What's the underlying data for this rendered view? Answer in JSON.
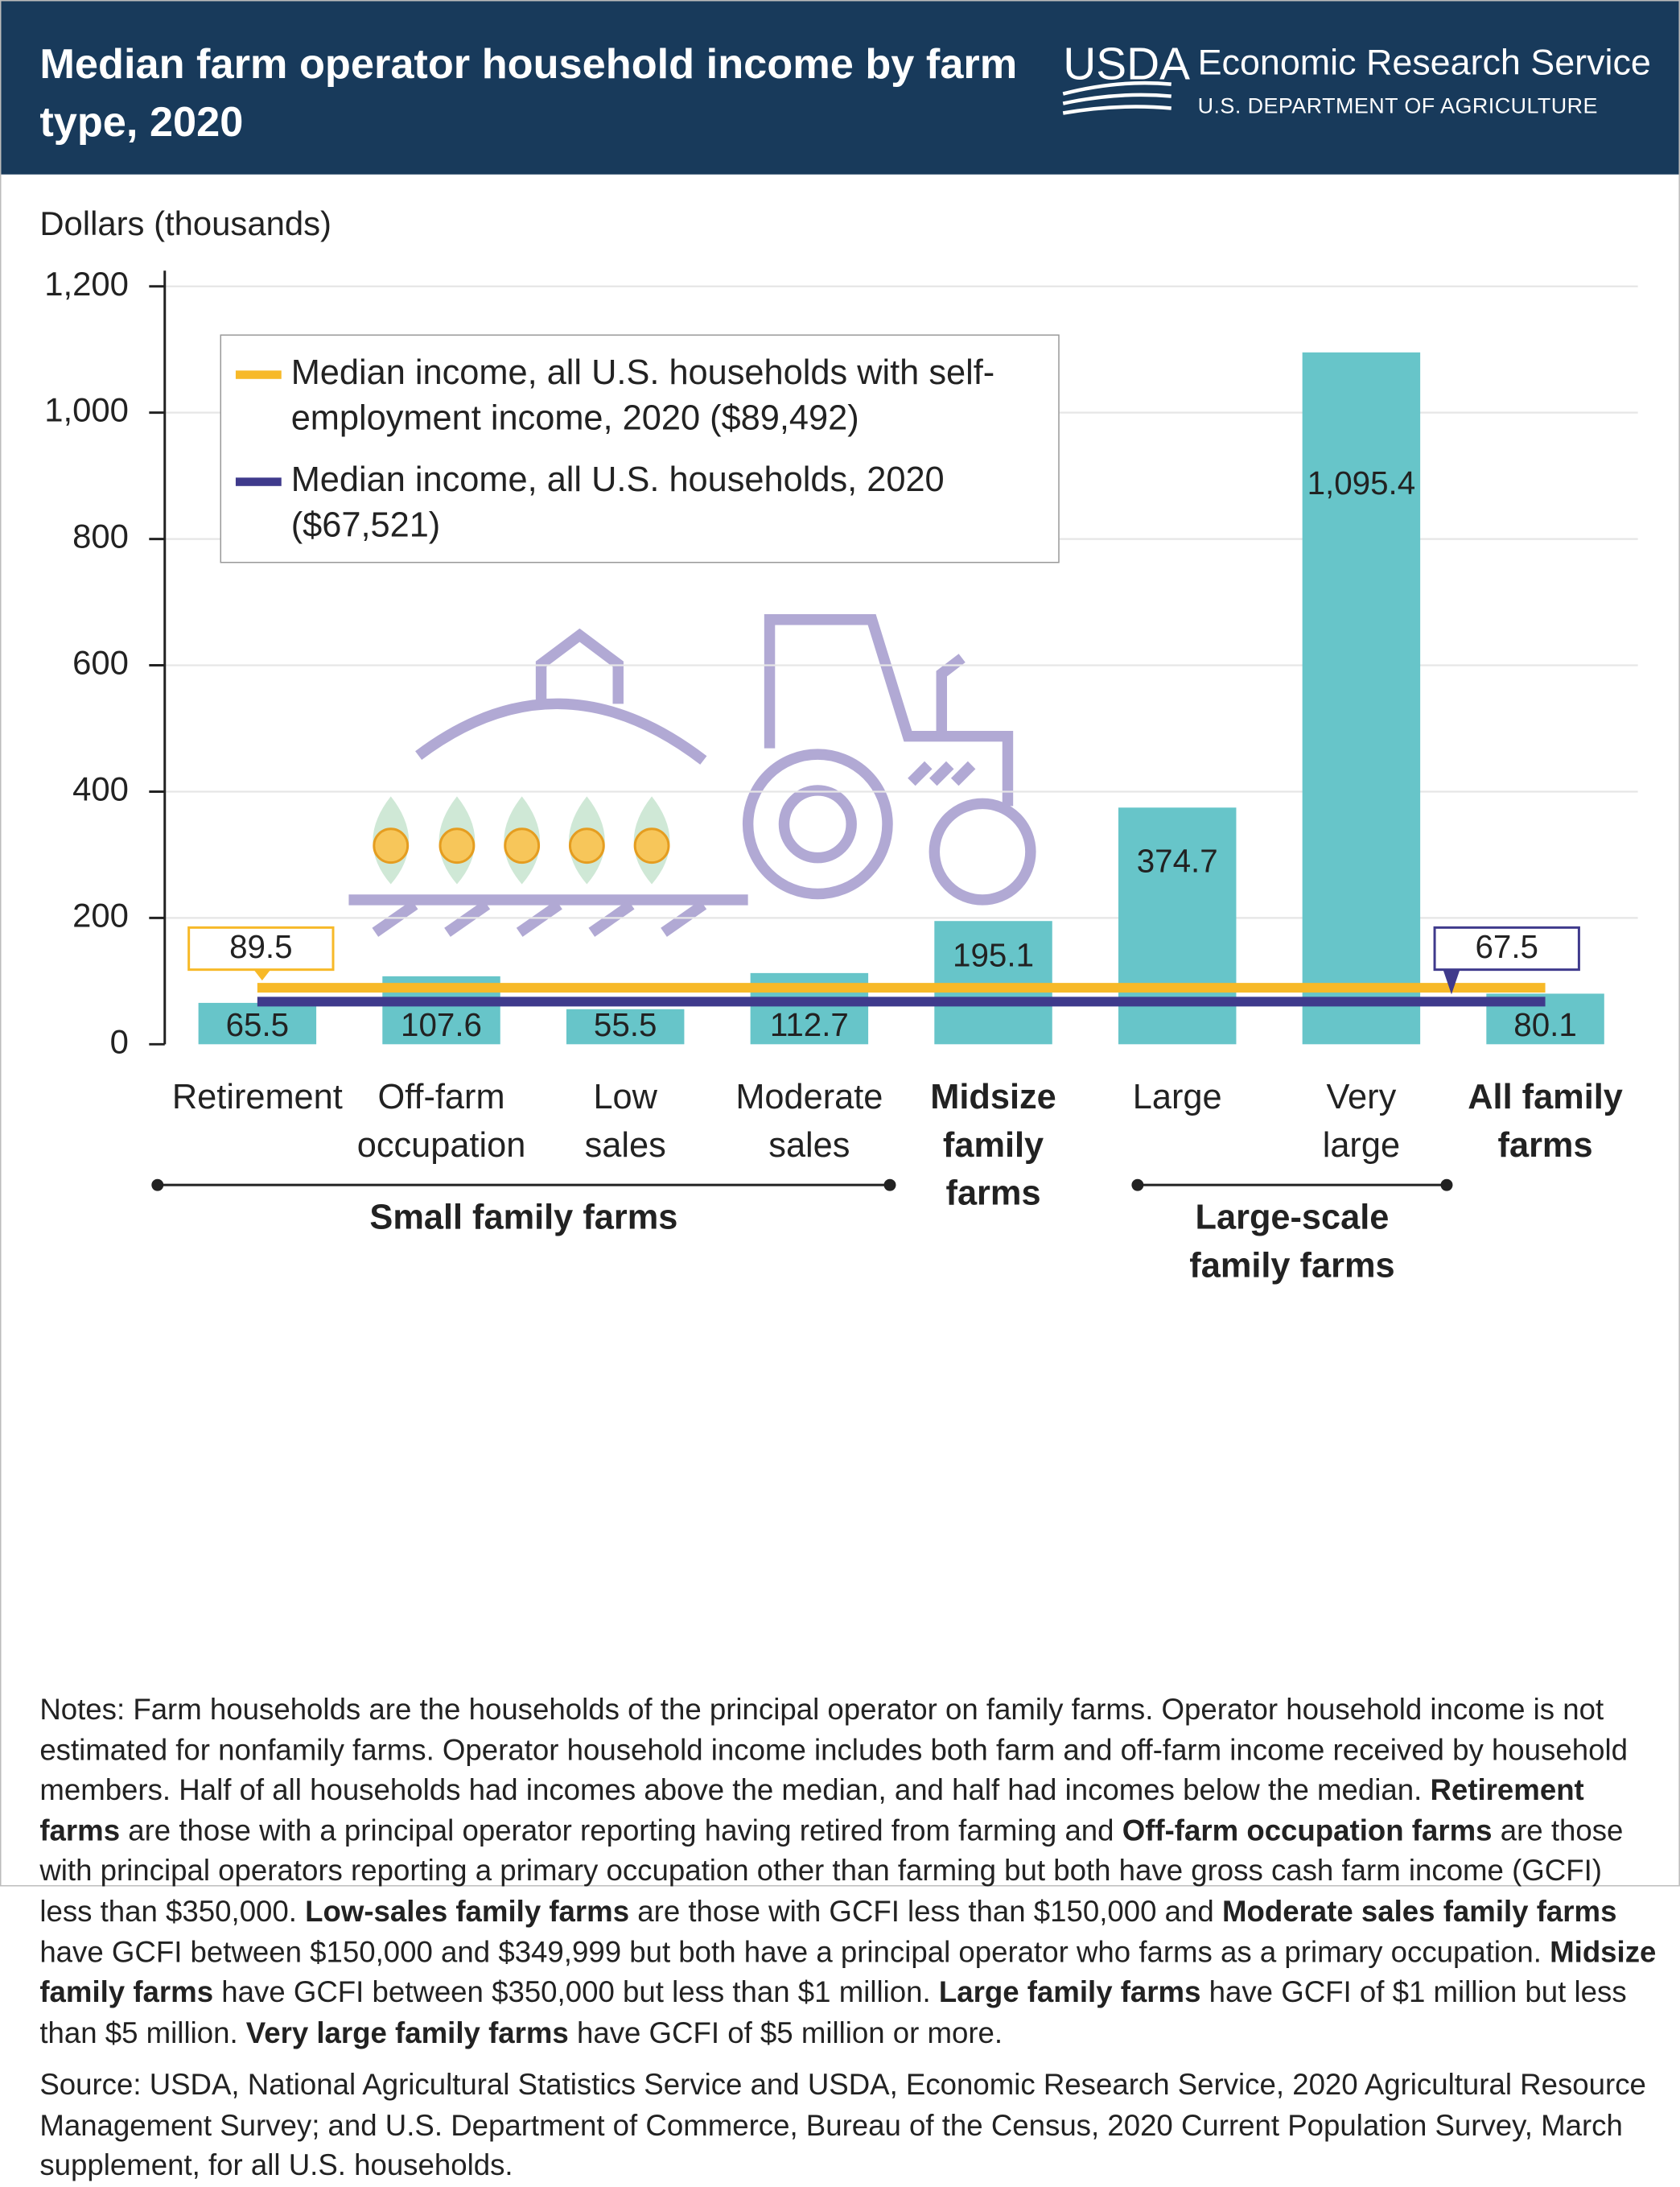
{
  "header": {
    "title": "Median farm operator household income by farm type, 2020",
    "logo": "USDA",
    "agency": "Economic Research Service",
    "department": "U.S. DEPARTMENT OF AGRICULTURE"
  },
  "chart_data": {
    "type": "bar",
    "y_label": "Dollars (thousands)",
    "categories": [
      "Retirement",
      "Off-farm occupation",
      "Low sales",
      "Moderate sales",
      "Midsize family farms",
      "Large",
      "Very large",
      "All family farms"
    ],
    "values": [
      65.5,
      107.6,
      55.5,
      112.7,
      195.1,
      374.7,
      1095.4,
      80.1
    ],
    "value_labels": [
      "65.5",
      "107.6",
      "55.5",
      "112.7",
      "195.1",
      "374.7",
      "1,095.4",
      "80.1"
    ],
    "color": "#67c5c9",
    "ylim": [
      0,
      1200
    ],
    "yticks": [
      0,
      200,
      400,
      600,
      800,
      {
        "value": 1000,
        "label": "1,000"
      },
      {
        "value": 1200,
        "label": "1,200"
      }
    ],
    "grid": true,
    "reference_lines": [
      {
        "name": "Median income, all U.S. households with self-employment income, 2020 ($89,492)",
        "value": 89.5,
        "color": "#f7b928"
      },
      {
        "name": "Median income, all U.S. households, 2020 ($67,521)",
        "value": 67.5,
        "color": "#3f3a8c"
      }
    ],
    "groups": [
      {
        "name": "Small family farms"
      },
      {
        "name": "Large-scale family farms"
      }
    ]
  },
  "notes": [
    {
      "text": "Notes: Farm households are the households of the principal operator on family farms. Operator household income is not estimated for nonfamily farms. Operator household income includes both farm and off-farm income received by household members. Half of all households had incomes above the median, and half had incomes below the median. ",
      "bold": false
    },
    {
      "text": "Retirement farms",
      "bold": true
    },
    {
      "text": " are those with a principal operator reporting having retired from farming and ",
      "bold": false
    },
    {
      "text": "Off-farm occupation farms",
      "bold": true
    },
    {
      "text": " are those with principal operators reporting a primary occupation other than farming but both have gross cash farm income (GCFI) less than $350,000. ",
      "bold": false
    },
    {
      "text": "Low-sales family farms",
      "bold": true
    },
    {
      "text": " are those with GCFI less than $150,000 and ",
      "bold": false
    },
    {
      "text": "Moderate sales family farms",
      "bold": true
    },
    {
      "text": " have GCFI between $150,000 and $349,999 but both have a principal operator who farms as a primary occupation. ",
      "bold": false
    },
    {
      "text": "Midsize family farms",
      "bold": true
    },
    {
      "text": " have GCFI between $350,000 but less than $1 million. ",
      "bold": false
    },
    {
      "text": "Large family farms",
      "bold": true
    },
    {
      "text": " have GCFI of $1 million but less than $5 million. ",
      "bold": false
    },
    {
      "text": "Very large family farms",
      "bold": true
    },
    {
      "text": " have GCFI of $5 million or more.",
      "bold": false
    }
  ],
  "source": "Source: USDA, National Agricultural Statistics Service and USDA, Economic Research Service, 2020 Agricultural Resource Management Survey; and U.S. Department of Commerce, Bureau of the Census, 2020 Current Population Survey, March supplement, for all U.S. households."
}
